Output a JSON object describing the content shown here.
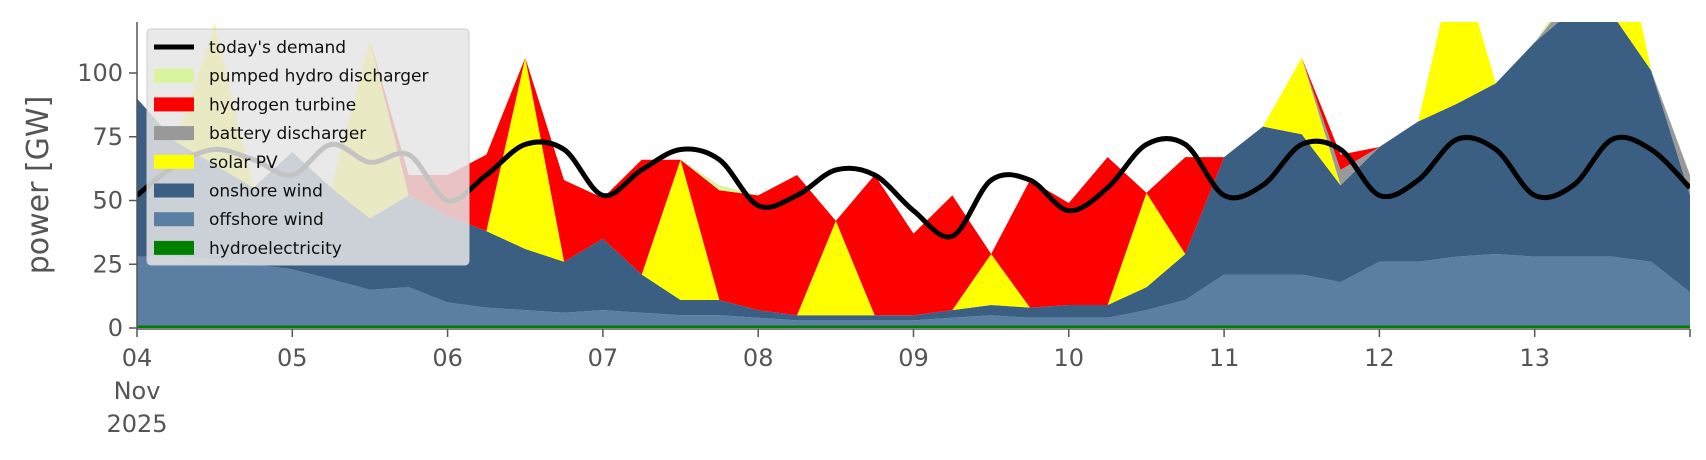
{
  "chart_data": {
    "type": "area",
    "ylabel": "power [GW]",
    "ylim": [
      0,
      120
    ],
    "y_ticks": [
      0,
      25,
      50,
      75,
      100
    ],
    "y_tick_labels": [
      "0",
      "25",
      "50",
      "75",
      "100"
    ],
    "x_range": [
      "2025-11-04",
      "2025-11-14"
    ],
    "x_ticks": [
      {
        "date": "2025-11-04",
        "lines": [
          "04",
          "Nov",
          "2025"
        ]
      },
      {
        "date": "2025-11-05",
        "lines": [
          "05"
        ]
      },
      {
        "date": "2025-11-06",
        "lines": [
          "06"
        ]
      },
      {
        "date": "2025-11-07",
        "lines": [
          "07"
        ]
      },
      {
        "date": "2025-11-08",
        "lines": [
          "08"
        ]
      },
      {
        "date": "2025-11-09",
        "lines": [
          "09"
        ]
      },
      {
        "date": "2025-11-10",
        "lines": [
          "10"
        ]
      },
      {
        "date": "2025-11-11",
        "lines": [
          "11"
        ]
      },
      {
        "date": "2025-11-12",
        "lines": [
          "12"
        ]
      },
      {
        "date": "2025-11-13",
        "lines": [
          "13"
        ]
      }
    ],
    "grid": false,
    "legend_position": "top-left",
    "x": [
      "2025-11-04 00:00",
      "2025-11-04 06:00",
      "2025-11-04 12:00",
      "2025-11-04 18:00",
      "2025-11-05 00:00",
      "2025-11-05 06:00",
      "2025-11-05 12:00",
      "2025-11-05 18:00",
      "2025-11-06 00:00",
      "2025-11-06 06:00",
      "2025-11-06 12:00",
      "2025-11-06 18:00",
      "2025-11-07 00:00",
      "2025-11-07 06:00",
      "2025-11-07 12:00",
      "2025-11-07 18:00",
      "2025-11-08 00:00",
      "2025-11-08 06:00",
      "2025-11-08 12:00",
      "2025-11-08 18:00",
      "2025-11-09 00:00",
      "2025-11-09 06:00",
      "2025-11-09 12:00",
      "2025-11-09 18:00",
      "2025-11-10 00:00",
      "2025-11-10 06:00",
      "2025-11-10 12:00",
      "2025-11-10 18:00",
      "2025-11-11 00:00",
      "2025-11-11 06:00",
      "2025-11-11 12:00",
      "2025-11-11 18:00",
      "2025-11-12 00:00",
      "2025-11-12 06:00",
      "2025-11-12 12:00",
      "2025-11-12 18:00",
      "2025-11-13 00:00",
      "2025-11-13 06:00",
      "2025-11-13 12:00",
      "2025-11-13 18:00",
      "2025-11-14 00:00"
    ],
    "series": [
      {
        "name": "hydroelectricity",
        "color": "#008000",
        "values": [
          1,
          1,
          1,
          1,
          1,
          1,
          1,
          1,
          1,
          1,
          1,
          1,
          1,
          1,
          1,
          1,
          1,
          1,
          1,
          1,
          1,
          1,
          1,
          1,
          1,
          1,
          1,
          1,
          1,
          1,
          1,
          1,
          1,
          1,
          1,
          1,
          1,
          1,
          1,
          1,
          1
        ]
      },
      {
        "name": "offshore wind",
        "color": "#5b7fa3",
        "values": [
          27,
          27,
          26,
          24,
          22,
          18,
          14,
          15,
          9,
          7,
          6,
          5,
          6,
          5,
          4,
          4,
          3,
          2,
          2,
          2,
          2,
          3,
          4,
          3,
          3,
          3,
          6,
          10,
          20,
          20,
          20,
          17,
          25,
          25,
          27,
          28,
          27,
          27,
          27,
          25,
          13
        ]
      },
      {
        "name": "onshore wind",
        "color": "#3a5f82",
        "values": [
          62,
          45,
          37,
          30,
          46,
          36,
          28,
          36,
          34,
          30,
          24,
          20,
          28,
          15,
          6,
          6,
          3,
          2,
          2,
          2,
          2,
          3,
          4,
          4,
          5,
          5,
          9,
          18,
          46,
          58,
          55,
          38,
          45,
          55,
          60,
          67,
          84,
          97,
          95,
          75,
          38
        ]
      },
      {
        "name": "solar PV",
        "color": "#ffff00",
        "values": [
          0,
          0,
          55,
          0,
          0,
          0,
          70,
          0,
          0,
          0,
          75,
          0,
          0,
          0,
          55,
          0,
          0,
          0,
          37,
          0,
          0,
          0,
          20,
          0,
          0,
          0,
          37,
          0,
          0,
          0,
          30,
          0,
          0,
          0,
          60,
          0,
          0,
          0,
          50,
          0,
          0
        ]
      },
      {
        "name": "battery discharger",
        "color": "#999999",
        "values": [
          0,
          0,
          0,
          0,
          0,
          0,
          0,
          0,
          0,
          0,
          0,
          0,
          0,
          0,
          0,
          0,
          0,
          0,
          0,
          0,
          0,
          0,
          0,
          0,
          0,
          0,
          0,
          0,
          0,
          0,
          0,
          6,
          0,
          0,
          0,
          0,
          0,
          6,
          0,
          0,
          8
        ]
      },
      {
        "name": "hydrogen turbine",
        "color": "#ff0000",
        "values": [
          0,
          0,
          0,
          0,
          0,
          0,
          0,
          8,
          16,
          30,
          0,
          32,
          16,
          45,
          0,
          43,
          45,
          55,
          0,
          55,
          32,
          45,
          0,
          50,
          40,
          58,
          0,
          38,
          0,
          0,
          0,
          6,
          0,
          0,
          0,
          0,
          0,
          0,
          0,
          0,
          0
        ]
      },
      {
        "name": "pumped hydro discharger",
        "color": "#d8f59d",
        "values": [
          0,
          0,
          0,
          0,
          0,
          0,
          0,
          0,
          0,
          0,
          0,
          0,
          0,
          0,
          0,
          2,
          0,
          0,
          0,
          0,
          0,
          0,
          0,
          0,
          0,
          0,
          0,
          0,
          0,
          0,
          0,
          0,
          0,
          0,
          0,
          0,
          0,
          4,
          0,
          0,
          0
        ]
      }
    ],
    "demand": {
      "name": "today's demand",
      "color": "#000000",
      "values": [
        52,
        64,
        70,
        66,
        60,
        72,
        65,
        68,
        50,
        60,
        72,
        70,
        52,
        62,
        70,
        66,
        48,
        52,
        62,
        60,
        46,
        36,
        58,
        58,
        46,
        55,
        72,
        72,
        52,
        56,
        72,
        70,
        52,
        58,
        74,
        70,
        52,
        56,
        74,
        70,
        55
      ]
    },
    "legend_entries": [
      {
        "label": "today's demand",
        "color": "#000000",
        "kind": "line"
      },
      {
        "label": "pumped hydro discharger",
        "color": "#d8f59d",
        "kind": "patch"
      },
      {
        "label": "hydrogen turbine",
        "color": "#ff0000",
        "kind": "patch"
      },
      {
        "label": "battery discharger",
        "color": "#999999",
        "kind": "patch"
      },
      {
        "label": "solar PV",
        "color": "#ffff00",
        "kind": "patch"
      },
      {
        "label": "onshore wind",
        "color": "#3a5f82",
        "kind": "patch"
      },
      {
        "label": "offshore wind",
        "color": "#5b7fa3",
        "kind": "patch"
      },
      {
        "label": "hydroelectricity",
        "color": "#008000",
        "kind": "patch"
      }
    ]
  }
}
